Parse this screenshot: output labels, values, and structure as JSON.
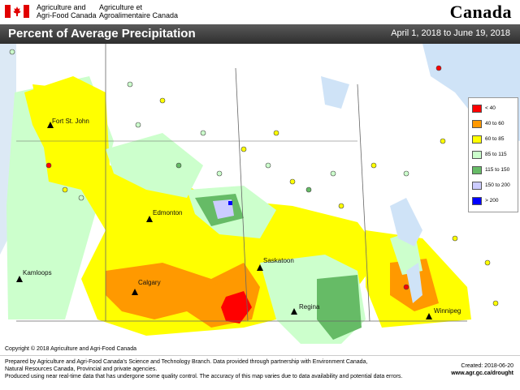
{
  "header": {
    "gov_en_line1": "Agriculture and",
    "gov_en_line2": "Agri-Food Canada",
    "gov_fr_line1": "Agriculture et",
    "gov_fr_line2": "Agroalimentaire Canada",
    "wordmark": "Canada"
  },
  "title": "Percent of Average Precipitation",
  "date_range": "April 1, 2018 to June 19, 2018",
  "legend": {
    "items": [
      {
        "label": "< 40",
        "color": "#ff0000"
      },
      {
        "label": "40 to 60",
        "color": "#ff9900"
      },
      {
        "label": "60 to 85",
        "color": "#ffff00"
      },
      {
        "label": "85 to 115",
        "color": "#ccffcc"
      },
      {
        "label": "115 to 150",
        "color": "#66bb66"
      },
      {
        "label": "150 to 200",
        "color": "#ccccff"
      },
      {
        "label": "> 200",
        "color": "#0000ff"
      }
    ]
  },
  "cities": {
    "fort_st_john": "Fort St. John",
    "edmonton": "Edmonton",
    "kamloops": "Kamloops",
    "calgary": "Calgary",
    "saskatoon": "Saskatoon",
    "regina": "Regina",
    "winnipeg": "Winnipeg"
  },
  "footer": {
    "copyright": "Copyright © 2018 Agriculture and Agri-Food Canada",
    "line1": "Prepared by Agriculture and Agri-Food Canada's Science and Technology Branch. Data provided through partnership with Environment Canada,",
    "line2": "Natural Resources Canada, Provincial and private agencies.",
    "line3": "Produced using near real-time data that has undergone some quality control. The accuracy of this map varies due to data availability and potential data errors.",
    "created": "Created: 2018-06-20",
    "url": "www.agr.gc.ca/drought"
  }
}
